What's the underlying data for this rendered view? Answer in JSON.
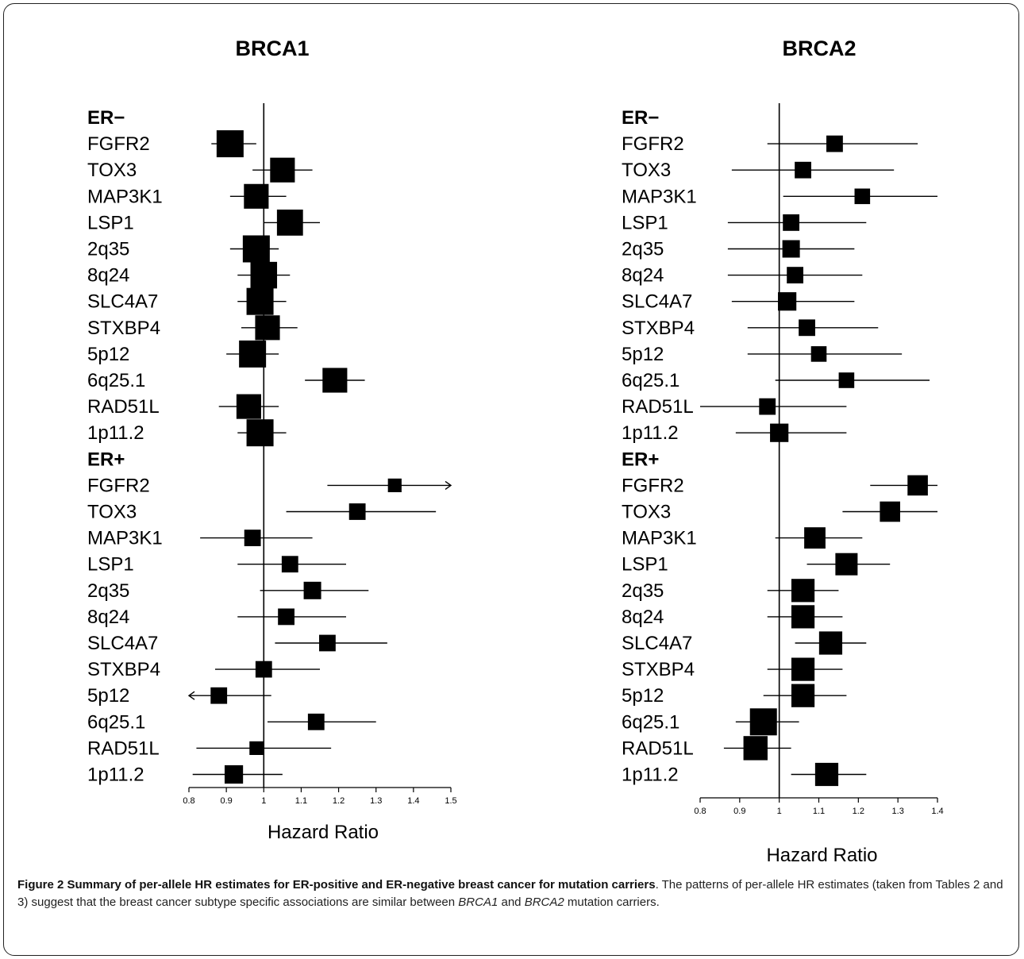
{
  "chart_data": [
    {
      "type": "forest",
      "title": "BRCA1",
      "xlabel": "Hazard Ratio",
      "xlim": [
        0.8,
        1.5
      ],
      "xticks": [
        0.8,
        0.9,
        1,
        1.1,
        1.2,
        1.3,
        1.4,
        1.5
      ],
      "reference_line": 1,
      "groups": [
        {
          "label": "ER−",
          "rows": [
            {
              "label": "FGFR2",
              "hr": 0.91,
              "lo": 0.86,
              "hi": 0.98,
              "weight": 1.0
            },
            {
              "label": "TOX3",
              "hr": 1.05,
              "lo": 0.97,
              "hi": 1.13,
              "weight": 0.88
            },
            {
              "label": "MAP3K1",
              "hr": 0.98,
              "lo": 0.91,
              "hi": 1.06,
              "weight": 0.88
            },
            {
              "label": "LSP1",
              "hr": 1.07,
              "lo": 1.0,
              "hi": 1.15,
              "weight": 0.95
            },
            {
              "label": "2q35",
              "hr": 0.98,
              "lo": 0.91,
              "hi": 1.04,
              "weight": 1.0
            },
            {
              "label": "8q24",
              "hr": 1.0,
              "lo": 0.93,
              "hi": 1.07,
              "weight": 0.98
            },
            {
              "label": "SLC4A7",
              "hr": 0.99,
              "lo": 0.93,
              "hi": 1.06,
              "weight": 1.0
            },
            {
              "label": "STXBP4",
              "hr": 1.01,
              "lo": 0.94,
              "hi": 1.09,
              "weight": 0.88
            },
            {
              "label": "5p12",
              "hr": 0.97,
              "lo": 0.9,
              "hi": 1.04,
              "weight": 1.0
            },
            {
              "label": "6q25.1",
              "hr": 1.19,
              "lo": 1.11,
              "hi": 1.27,
              "weight": 0.88
            },
            {
              "label": "RAD51L",
              "hr": 0.96,
              "lo": 0.88,
              "hi": 1.04,
              "weight": 0.88
            },
            {
              "label": "1p11.2",
              "hr": 0.99,
              "lo": 0.93,
              "hi": 1.06,
              "weight": 1.0
            }
          ]
        },
        {
          "label": "ER+",
          "rows": [
            {
              "label": "FGFR2",
              "hr": 1.35,
              "lo": 1.17,
              "hi": 1.5,
              "weight": 0.3,
              "arrow": "right"
            },
            {
              "label": "TOX3",
              "hr": 1.25,
              "lo": 1.06,
              "hi": 1.46,
              "weight": 0.45
            },
            {
              "label": "MAP3K1",
              "hr": 0.97,
              "lo": 0.83,
              "hi": 1.13,
              "weight": 0.45
            },
            {
              "label": "LSP1",
              "hr": 1.07,
              "lo": 0.93,
              "hi": 1.22,
              "weight": 0.45
            },
            {
              "label": "2q35",
              "hr": 1.13,
              "lo": 0.99,
              "hi": 1.28,
              "weight": 0.5
            },
            {
              "label": "8q24",
              "hr": 1.06,
              "lo": 0.93,
              "hi": 1.22,
              "weight": 0.45
            },
            {
              "label": "SLC4A7",
              "hr": 1.17,
              "lo": 1.03,
              "hi": 1.33,
              "weight": 0.45
            },
            {
              "label": "STXBP4",
              "hr": 1.0,
              "lo": 0.87,
              "hi": 1.15,
              "weight": 0.45
            },
            {
              "label": "5p12",
              "hr": 0.88,
              "lo": 0.8,
              "hi": 1.02,
              "weight": 0.45,
              "arrow": "left"
            },
            {
              "label": "6q25.1",
              "hr": 1.14,
              "lo": 1.01,
              "hi": 1.3,
              "weight": 0.45
            },
            {
              "label": "RAD51L",
              "hr": 0.98,
              "lo": 0.82,
              "hi": 1.18,
              "weight": 0.3
            },
            {
              "label": "1p11.2",
              "hr": 0.92,
              "lo": 0.81,
              "hi": 1.05,
              "weight": 0.55
            }
          ]
        }
      ]
    },
    {
      "type": "forest",
      "title": "BRCA2",
      "xlabel": "Hazard Ratio",
      "xlim": [
        0.8,
        1.4
      ],
      "xticks": [
        0.8,
        0.9,
        1,
        1.1,
        1.2,
        1.3,
        1.4
      ],
      "reference_line": 1,
      "groups": [
        {
          "label": "ER−",
          "rows": [
            {
              "label": "FGFR2",
              "hr": 1.14,
              "lo": 0.97,
              "hi": 1.35,
              "weight": 0.45
            },
            {
              "label": "TOX3",
              "hr": 1.06,
              "lo": 0.88,
              "hi": 1.29,
              "weight": 0.45
            },
            {
              "label": "MAP3K1",
              "hr": 1.21,
              "lo": 1.01,
              "hi": 1.45,
              "weight": 0.4
            },
            {
              "label": "LSP1",
              "hr": 1.03,
              "lo": 0.87,
              "hi": 1.22,
              "weight": 0.45
            },
            {
              "label": "2q35",
              "hr": 1.03,
              "lo": 0.87,
              "hi": 1.19,
              "weight": 0.5
            },
            {
              "label": "8q24",
              "hr": 1.04,
              "lo": 0.87,
              "hi": 1.21,
              "weight": 0.45
            },
            {
              "label": "SLC4A7",
              "hr": 1.02,
              "lo": 0.88,
              "hi": 1.19,
              "weight": 0.55
            },
            {
              "label": "STXBP4",
              "hr": 1.07,
              "lo": 0.92,
              "hi": 1.25,
              "weight": 0.45
            },
            {
              "label": "5p12",
              "hr": 1.1,
              "lo": 0.92,
              "hi": 1.31,
              "weight": 0.4
            },
            {
              "label": "6q25.1",
              "hr": 1.17,
              "lo": 0.99,
              "hi": 1.38,
              "weight": 0.4
            },
            {
              "label": "RAD51L",
              "hr": 0.97,
              "lo": 0.8,
              "hi": 1.17,
              "weight": 0.45
            },
            {
              "label": "1p11.2",
              "hr": 1.0,
              "lo": 0.89,
              "hi": 1.17,
              "weight": 0.55
            }
          ]
        },
        {
          "label": "ER+",
          "rows": [
            {
              "label": "FGFR2",
              "hr": 1.35,
              "lo": 1.23,
              "hi": 1.48,
              "weight": 0.65
            },
            {
              "label": "TOX3",
              "hr": 1.28,
              "lo": 1.16,
              "hi": 1.42,
              "weight": 0.65
            },
            {
              "label": "MAP3K1",
              "hr": 1.09,
              "lo": 0.99,
              "hi": 1.21,
              "weight": 0.7
            },
            {
              "label": "LSP1",
              "hr": 1.17,
              "lo": 1.07,
              "hi": 1.28,
              "weight": 0.75
            },
            {
              "label": "2q35",
              "hr": 1.06,
              "lo": 0.97,
              "hi": 1.15,
              "weight": 0.8
            },
            {
              "label": "8q24",
              "hr": 1.06,
              "lo": 0.97,
              "hi": 1.16,
              "weight": 0.8
            },
            {
              "label": "SLC4A7",
              "hr": 1.13,
              "lo": 1.04,
              "hi": 1.22,
              "weight": 0.8
            },
            {
              "label": "STXBP4",
              "hr": 1.06,
              "lo": 0.97,
              "hi": 1.16,
              "weight": 0.8
            },
            {
              "label": "5p12",
              "hr": 1.06,
              "lo": 0.96,
              "hi": 1.17,
              "weight": 0.8
            },
            {
              "label": "6q25.1",
              "hr": 0.96,
              "lo": 0.89,
              "hi": 1.05,
              "weight": 1.0
            },
            {
              "label": "RAD51L",
              "hr": 0.94,
              "lo": 0.86,
              "hi": 1.03,
              "weight": 0.85
            },
            {
              "label": "1p11.2",
              "hr": 1.12,
              "lo": 1.03,
              "hi": 1.22,
              "weight": 0.8
            }
          ]
        }
      ]
    }
  ],
  "caption": {
    "title": "Figure 2 Summary of per-allele HR estimates for ER-positive and ER-negative breast cancer for mutation carriers",
    "text_before_1": ". The patterns of per-allele HR estimates (taken from Tables 2 and 3) suggest that the breast cancer subtype specific associations are similar between ",
    "gene1": "BRCA1",
    "text_between": " and ",
    "gene2": "BRCA2",
    "text_after": " mutation carriers."
  }
}
